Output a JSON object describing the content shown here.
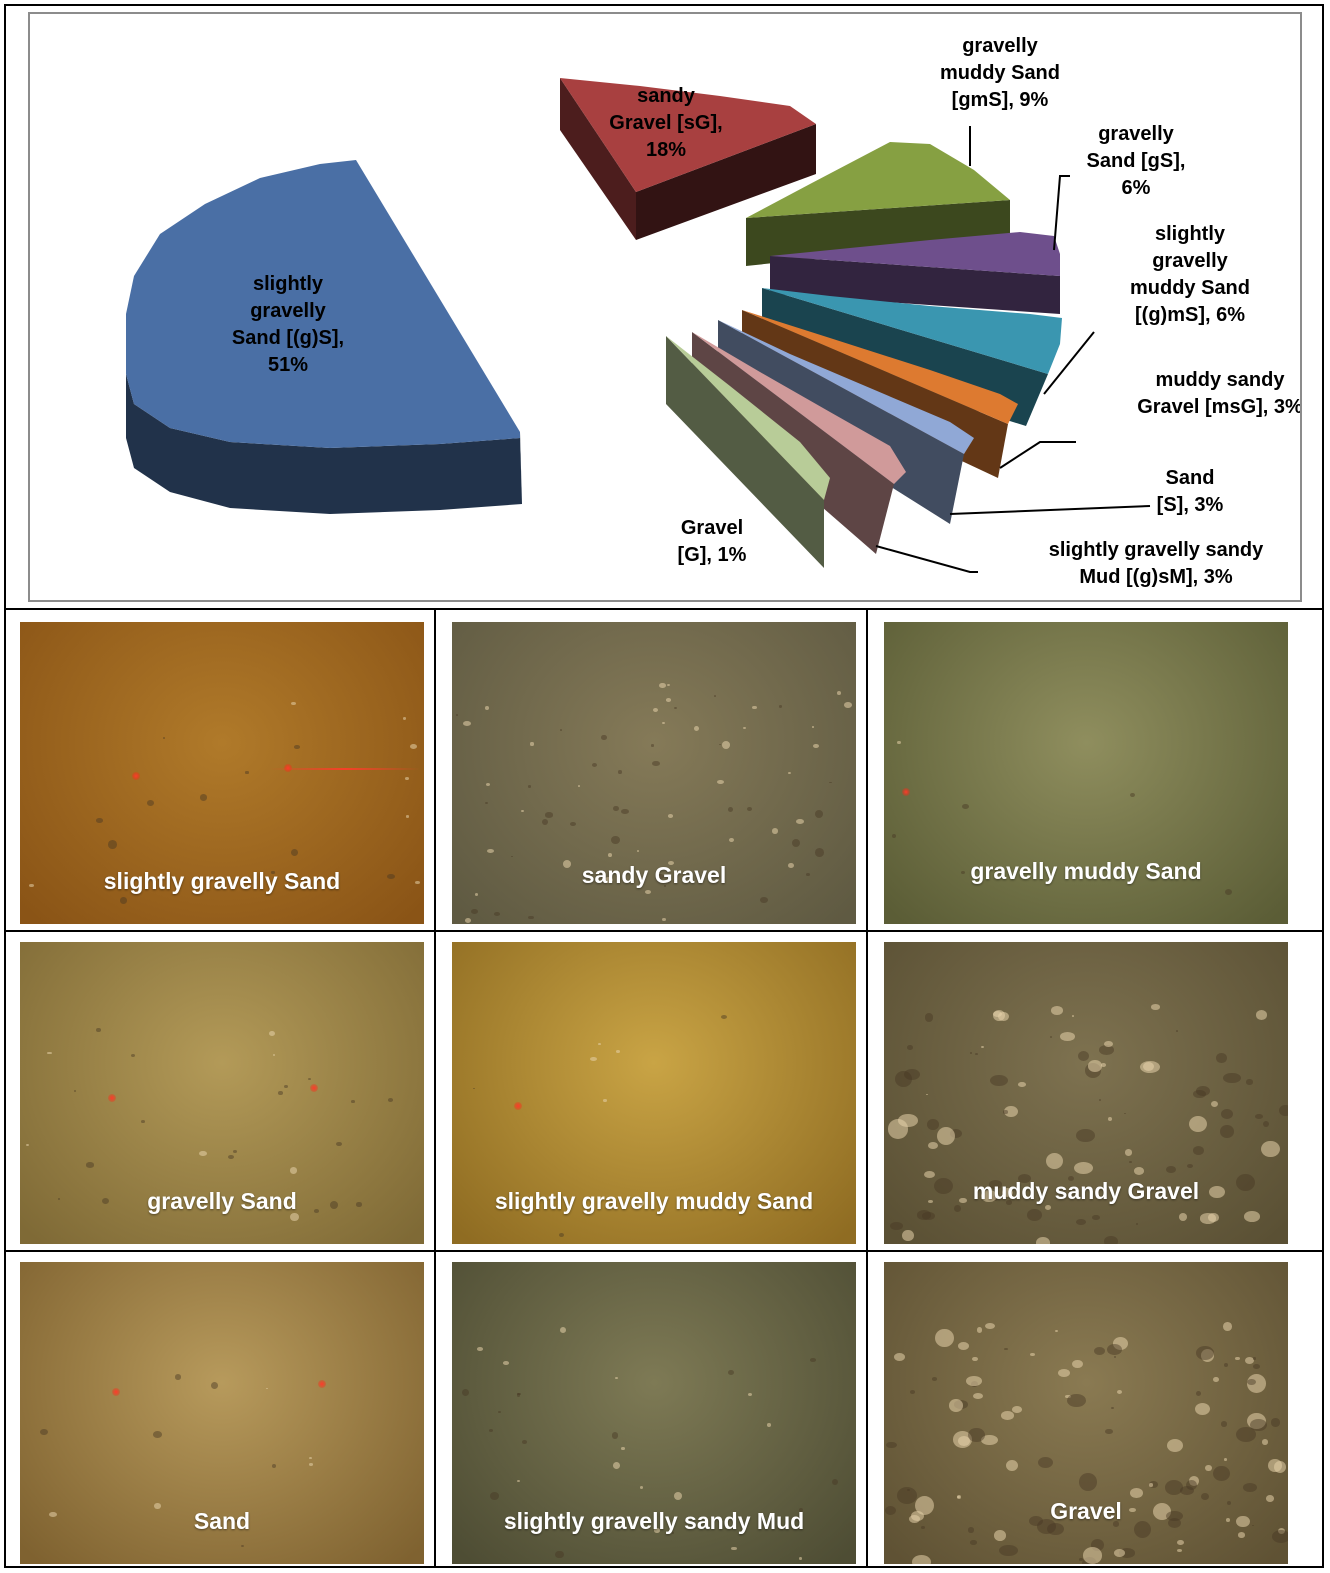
{
  "chart_data": {
    "type": "pie",
    "title": "",
    "slices": [
      {
        "label": "slightly gravelly Sand [(g)S], 51%",
        "category": "slightly gravelly Sand [(g)S]",
        "value": 51,
        "color": "#4a6fa5"
      },
      {
        "label": "sandy Gravel [sG], 18%",
        "category": "sandy Gravel [sG]",
        "value": 18,
        "color": "#a84040"
      },
      {
        "label": "gravelly muddy Sand [gmS], 9%",
        "category": "gravelly muddy Sand [gmS]",
        "value": 9,
        "color": "#86a042"
      },
      {
        "label": "gravelly Sand [gS], 6%",
        "category": "gravelly Sand [gS]",
        "value": 6,
        "color": "#6e4f8c"
      },
      {
        "label": "slightly gravelly muddy Sand [(g)mS], 6%",
        "category": "slightly gravelly muddy Sand [(g)mS]",
        "value": 6,
        "color": "#3a96b0"
      },
      {
        "label": "muddy sandy Gravel [msG], 3%",
        "category": "muddy sandy Gravel [msG]",
        "value": 3,
        "color": "#dd7a30"
      },
      {
        "label": "Sand [S], 3%",
        "category": "Sand [S]",
        "value": 3,
        "color": "#90a8d6"
      },
      {
        "label": "slightly gravelly sandy Mud [(g)sM], 3%",
        "category": "slightly gravelly sandy Mud [(g)sM]",
        "value": 3,
        "color": "#d09a9a"
      },
      {
        "label": "Gravel [G], 1%",
        "category": "Gravel [G]",
        "value": 1,
        "color": "#b8cc98"
      }
    ],
    "label_lines": [
      [
        "slightly",
        "gravelly",
        "Sand [(g)S],",
        "51%"
      ],
      [
        "sandy",
        "Gravel [sG],",
        "18%"
      ],
      [
        "gravelly",
        "muddy Sand",
        "[gmS], 9%"
      ],
      [
        "gravelly",
        "Sand [gS],",
        "6%"
      ],
      [
        "slightly",
        "gravelly",
        "muddy Sand",
        "[(g)mS], 6%"
      ],
      [
        "muddy sandy",
        "Gravel [msG], 3%"
      ],
      [
        "Sand",
        "[S], 3%"
      ],
      [
        "slightly gravelly sandy",
        "Mud [(g)sM], 3%"
      ],
      [
        "Gravel",
        "[G], 1%"
      ]
    ],
    "style": "3d-exploded"
  },
  "photos": [
    {
      "caption": "slightly gravelly Sand",
      "tone": [
        "#b07a2a",
        "#8a5416"
      ]
    },
    {
      "caption": "sandy Gravel",
      "tone": [
        "#857a58",
        "#5f5a42"
      ]
    },
    {
      "caption": "gravelly muddy Sand",
      "tone": [
        "#8f8e5e",
        "#5b5d36"
      ]
    },
    {
      "caption": "gravelly Sand",
      "tone": [
        "#b39a58",
        "#7f6a36"
      ]
    },
    {
      "caption": "slightly gravelly muddy Sand",
      "tone": [
        "#c9a445",
        "#8f6c22"
      ]
    },
    {
      "caption": "muddy sandy Gravel",
      "tone": [
        "#7e7250",
        "#5a5034"
      ]
    },
    {
      "caption": "Sand",
      "tone": [
        "#b79a5c",
        "#7f6230"
      ]
    },
    {
      "caption": "slightly gravelly sandy Mud",
      "tone": [
        "#7e7a55",
        "#4e4d34"
      ]
    },
    {
      "caption": "Gravel",
      "tone": [
        "#8a7a52",
        "#5f5234"
      ]
    }
  ]
}
